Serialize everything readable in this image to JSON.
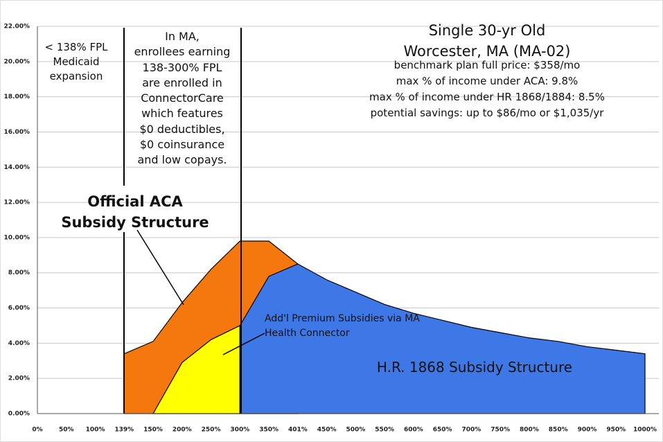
{
  "chart_data": {
    "type": "area",
    "title_lines": [
      "Single 30-yr Old",
      "Worcester, MA (MA-02)"
    ],
    "notes": [
      "benchmark plan full price: $358/mo",
      "max % of income under ACA: 9.8%",
      "max % of income under HR 1868/1884: 8.5%",
      "potential savings: up to $86/mo or $1,035/yr"
    ],
    "annotations": [
      {
        "lines": [
          "< 138% FPL",
          "Medicaid",
          "expansion"
        ]
      },
      {
        "lines": [
          "In MA,",
          "enrollees earning",
          "138-300% FPL",
          "are enrolled in",
          "ConnectorCare",
          "which features",
          "$0 deductibles,",
          "$0 coinsurance",
          "and low copays."
        ]
      }
    ],
    "categories": [
      "0%",
      "50%",
      "100%",
      "139%",
      "150%",
      "200%",
      "250%",
      "300%",
      "350%",
      "401%",
      "450%",
      "500%",
      "550%",
      "600%",
      "650%",
      "700%",
      "750%",
      "800%",
      "850%",
      "900%",
      "950%",
      "1000%"
    ],
    "series": [
      {
        "name": "Official ACA Subsidy Structure",
        "color": "#f5780f",
        "values": [
          null,
          null,
          null,
          3.4,
          4.1,
          6.3,
          8.2,
          9.8,
          9.8,
          8.5,
          null,
          null,
          null,
          null,
          null,
          null,
          null,
          null,
          null,
          null,
          null,
          null
        ]
      },
      {
        "name": "Add'l Premium Subsidies via MA Health Connector",
        "color": "#ffff00",
        "values": [
          null,
          null,
          null,
          null,
          0,
          2.9,
          4.2,
          5.0,
          null,
          null,
          null,
          null,
          null,
          null,
          null,
          null,
          null,
          null,
          null,
          null,
          null,
          null
        ]
      },
      {
        "name": "H.R. 1868 Subsidy Structure",
        "color": "#3d78e6",
        "values": [
          null,
          null,
          null,
          null,
          null,
          null,
          null,
          5.0,
          7.8,
          8.5,
          7.6,
          6.9,
          6.2,
          5.7,
          5.3,
          4.9,
          4.6,
          4.3,
          4.1,
          3.8,
          3.6,
          3.4
        ]
      }
    ],
    "ylim": [
      0,
      22
    ],
    "yticks": [
      {
        "value": 0,
        "label": "0.00%"
      },
      {
        "value": 2,
        "label": "2.00%"
      },
      {
        "value": 4,
        "label": "4.00%"
      },
      {
        "value": 6,
        "label": "6.00%"
      },
      {
        "value": 8,
        "label": "8.00%"
      },
      {
        "value": 10,
        "label": "10.00%"
      },
      {
        "value": 12,
        "label": "12.00%"
      },
      {
        "value": 14,
        "label": "14.00%"
      },
      {
        "value": 16,
        "label": "16.00%"
      },
      {
        "value": 18,
        "label": "18.00%"
      },
      {
        "value": 20,
        "label": "20.00%"
      },
      {
        "value": 22,
        "label": "22.00%"
      }
    ],
    "grid": true
  }
}
